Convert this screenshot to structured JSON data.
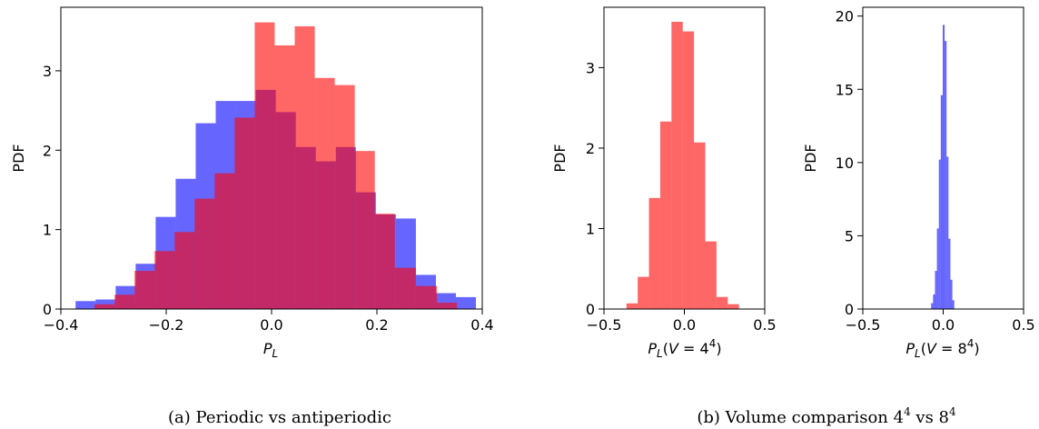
{
  "chart_data": [
    {
      "id": "a",
      "type": "bar",
      "title": "",
      "xlabel": "P_L",
      "ylabel": "PDF",
      "xlim": [
        -0.4,
        0.4
      ],
      "ylim": [
        0,
        3.8
      ],
      "xticks": [
        "−0.4",
        "−0.2",
        "0.0",
        "0.2",
        "0.4"
      ],
      "xtick_values": [
        -0.4,
        -0.2,
        0.0,
        0.2,
        0.4
      ],
      "yticks": [
        "0",
        "1",
        "2",
        "3"
      ],
      "ytick_values": [
        0,
        1,
        2,
        3
      ],
      "grid": false,
      "series": [
        {
          "color": "#0000ff",
          "alpha": 0.6,
          "bin_edges": [
            -0.372,
            -0.334,
            -0.296,
            -0.258,
            -0.22,
            -0.182,
            -0.144,
            -0.106,
            -0.068,
            -0.03,
            0.008,
            0.046,
            0.084,
            0.122,
            0.16,
            0.198,
            0.236,
            0.274,
            0.312,
            0.35,
            0.388
          ],
          "values": [
            0.1,
            0.12,
            0.29,
            0.57,
            1.16,
            1.64,
            2.34,
            2.62,
            2.62,
            2.76,
            2.48,
            2.04,
            1.86,
            2.04,
            1.47,
            1.19,
            1.14,
            0.43,
            0.2,
            0.15
          ]
        },
        {
          "color": "#ff0000",
          "alpha": 0.6,
          "bin_edges": [
            -0.336,
            -0.298,
            -0.26,
            -0.222,
            -0.184,
            -0.146,
            -0.108,
            -0.07,
            -0.032,
            0.006,
            0.044,
            0.082,
            0.12,
            0.158,
            0.196,
            0.234,
            0.274,
            0.314,
            0.352
          ],
          "values": [
            0.06,
            0.18,
            0.48,
            0.73,
            0.97,
            1.39,
            1.71,
            2.41,
            3.61,
            3.32,
            3.56,
            2.91,
            2.82,
            1.99,
            1.2,
            0.52,
            0.29,
            0.08
          ]
        }
      ]
    },
    {
      "id": "b1",
      "type": "bar",
      "title": "",
      "xlabel": "P_L(V = 4^4)",
      "ylabel": "PDF",
      "xlim": [
        -0.5,
        0.5
      ],
      "ylim": [
        0,
        3.75
      ],
      "xticks": [
        "−0.5",
        "0.0",
        "0.5"
      ],
      "xtick_values": [
        -0.5,
        0.0,
        0.5
      ],
      "yticks": [
        "0",
        "1",
        "2",
        "3"
      ],
      "ytick_values": [
        0,
        1,
        2,
        3
      ],
      "grid": false,
      "series": [
        {
          "color": "#ff0000",
          "alpha": 0.6,
          "bin_edges": [
            -0.36,
            -0.29,
            -0.22,
            -0.15,
            -0.08,
            -0.01,
            0.06,
            0.13,
            0.2,
            0.27,
            0.34
          ],
          "values": [
            0.07,
            0.4,
            1.38,
            2.33,
            3.57,
            3.45,
            2.07,
            0.84,
            0.15,
            0.06
          ]
        }
      ]
    },
    {
      "id": "b2",
      "type": "bar",
      "title": "",
      "xlabel": "P_L(V = 8^4)",
      "ylabel": "PDF",
      "xlim": [
        -0.5,
        0.5
      ],
      "ylim": [
        0,
        20.6
      ],
      "xticks": [
        "−0.5",
        "0.0",
        "0.5"
      ],
      "xtick_values": [
        -0.5,
        0.0,
        0.5
      ],
      "yticks": [
        "0",
        "5",
        "10",
        "15",
        "20"
      ],
      "ytick_values": [
        0,
        5,
        10,
        15,
        20
      ],
      "grid": false,
      "series": [
        {
          "color": "#0000ff",
          "alpha": 0.6,
          "bin_edges": [
            -0.075,
            -0.063,
            -0.051,
            -0.039,
            -0.027,
            -0.015,
            -0.003,
            0.009,
            0.021,
            0.033,
            0.045,
            0.057,
            0.069
          ],
          "values": [
            0.4,
            1.0,
            2.6,
            5.5,
            10.2,
            14.6,
            19.4,
            18.3,
            10.4,
            4.8,
            2.0,
            0.6
          ]
        }
      ]
    }
  ],
  "captions": {
    "a": "(a)  Periodic vs antiperiodic",
    "b": "(b)  Volume comparison 4",
    "b_exp1": "4",
    "b_mid": " vs 8",
    "b_exp2": "4"
  }
}
